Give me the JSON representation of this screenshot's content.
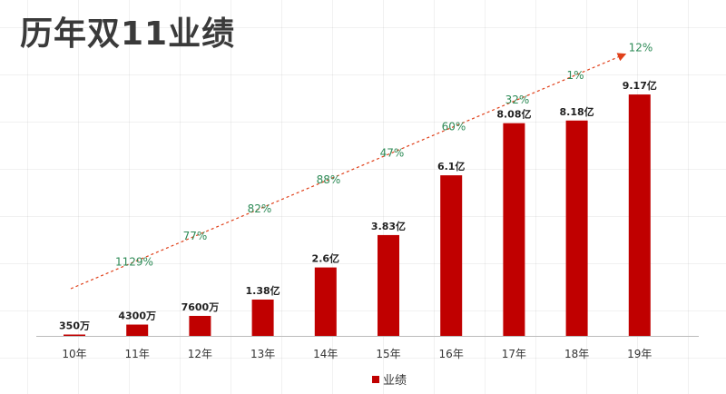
{
  "chart_data": {
    "type": "bar",
    "title": "历年双11业绩",
    "categories": [
      "10年",
      "11年",
      "12年",
      "13年",
      "14年",
      "15年",
      "16年",
      "17年",
      "18年",
      "19年"
    ],
    "series": [
      {
        "name": "业绩",
        "values": [
          0.035,
          0.43,
          0.76,
          1.38,
          2.6,
          3.83,
          6.1,
          8.08,
          8.18,
          9.17
        ],
        "unit": "亿",
        "labels": [
          "350万",
          "4300万",
          "7600万",
          "1.38亿",
          "2.6亿",
          "3.83亿",
          "6.1亿",
          "8.08亿",
          "8.18亿",
          "9.17亿"
        ]
      }
    ],
    "growth_rates": [
      "1129%",
      "77%",
      "82%",
      "88%",
      "47%",
      "60%",
      "32%",
      "1%",
      "12%"
    ],
    "ylim": [
      0,
      10
    ],
    "grid": true,
    "legend_position": "bottom"
  },
  "colors": {
    "bar": "#c00000",
    "trend": "#e0401a",
    "growth_text": "#2e8b57"
  }
}
